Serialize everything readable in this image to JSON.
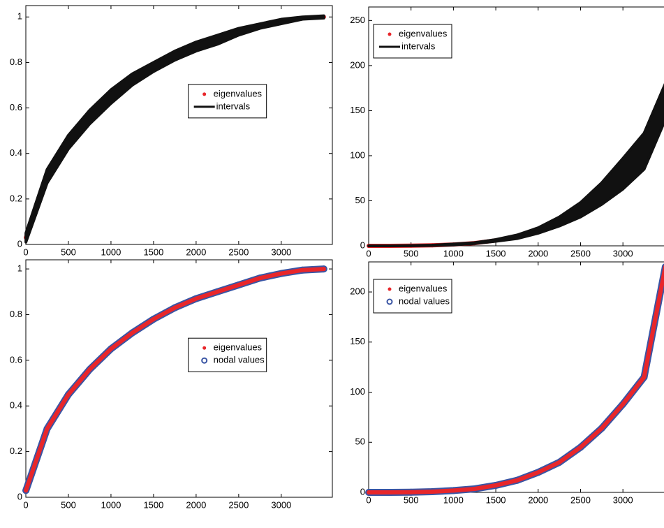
{
  "chart_data": [
    {
      "type": "line",
      "x": [
        1,
        250,
        500,
        750,
        1000,
        1250,
        1500,
        1750,
        2000,
        2250,
        2500,
        2750,
        3000,
        3250,
        3500
      ],
      "xlim": [
        0,
        3600
      ],
      "xticks": [
        0,
        500,
        1000,
        1500,
        2000,
        2500,
        3000
      ],
      "ylim": [
        0,
        1.05
      ],
      "yticks": [
        0,
        0.2,
        0.4,
        0.6,
        0.8,
        1
      ],
      "legend": "east",
      "series": [
        {
          "name": "eigenvalues",
          "color": "#e8262a",
          "style": "dots",
          "values": [
            0.03,
            0.3,
            0.45,
            0.56,
            0.65,
            0.72,
            0.78,
            0.83,
            0.87,
            0.9,
            0.93,
            0.96,
            0.98,
            0.995,
            1.0
          ]
        },
        {
          "name": "intervals",
          "color": "#111111",
          "style": "band",
          "lower": [
            0.01,
            0.27,
            0.42,
            0.53,
            0.62,
            0.7,
            0.76,
            0.81,
            0.85,
            0.88,
            0.92,
            0.95,
            0.97,
            0.99,
            0.995
          ],
          "upper": [
            0.05,
            0.33,
            0.48,
            0.59,
            0.68,
            0.75,
            0.8,
            0.85,
            0.89,
            0.92,
            0.95,
            0.97,
            0.99,
            1.0,
            1.005
          ]
        }
      ]
    },
    {
      "type": "line",
      "x": [
        1,
        250,
        500,
        750,
        1000,
        1250,
        1500,
        1750,
        2000,
        2250,
        2500,
        2750,
        3000,
        3250,
        3500
      ],
      "xlim": [
        0,
        3600
      ],
      "xticks": [
        0,
        500,
        1000,
        1500,
        2000,
        2500,
        3000
      ],
      "ylim": [
        0,
        265
      ],
      "yticks": [
        0,
        50,
        100,
        150,
        200,
        250
      ],
      "legend": "northwest",
      "series": [
        {
          "name": "eigenvalues",
          "color": "#e8262a",
          "style": "dots",
          "values": [
            0,
            0,
            0.2,
            0.6,
            1.5,
            3,
            6,
            10,
            17,
            27,
            40,
            58,
            80,
            105,
            170
          ]
        },
        {
          "name": "intervals",
          "color": "#111111",
          "style": "band",
          "lower": [
            0,
            0,
            0.1,
            0.4,
            1,
            2.5,
            5,
            8,
            14,
            22,
            32,
            46,
            63,
            85,
            140
          ],
          "upper": [
            0,
            0,
            0.3,
            0.8,
            2,
            3.5,
            7,
            12,
            20,
            32,
            48,
            70,
            97,
            125,
            180
          ]
        }
      ]
    },
    {
      "type": "line",
      "x": [
        1,
        250,
        500,
        750,
        1000,
        1250,
        1500,
        1750,
        2000,
        2250,
        2500,
        2750,
        3000,
        3250,
        3500
      ],
      "xlim": [
        0,
        3600
      ],
      "xticks": [
        0,
        500,
        1000,
        1500,
        2000,
        2500,
        3000
      ],
      "ylim": [
        0,
        1.04
      ],
      "yticks": [
        0,
        0.2,
        0.4,
        0.6,
        0.8,
        1
      ],
      "legend": "east",
      "series": [
        {
          "name": "nodal values",
          "color": "#3a55a4",
          "style": "circles",
          "values": [
            0.03,
            0.3,
            0.45,
            0.56,
            0.65,
            0.72,
            0.78,
            0.83,
            0.87,
            0.9,
            0.93,
            0.96,
            0.98,
            0.995,
            1.0
          ]
        },
        {
          "name": "eigenvalues",
          "color": "#e8262a",
          "style": "dots",
          "values": [
            0.03,
            0.3,
            0.45,
            0.56,
            0.65,
            0.72,
            0.78,
            0.83,
            0.87,
            0.9,
            0.93,
            0.96,
            0.98,
            0.995,
            1.0
          ]
        }
      ]
    },
    {
      "type": "line",
      "x": [
        1,
        250,
        500,
        750,
        1000,
        1250,
        1500,
        1750,
        2000,
        2250,
        2500,
        2750,
        3000,
        3250,
        3500
      ],
      "xlim": [
        0,
        3600
      ],
      "xticks": [
        0,
        500,
        1000,
        1500,
        2000,
        2500,
        3000
      ],
      "ylim": [
        0,
        230
      ],
      "yticks": [
        0,
        50,
        100,
        150,
        200
      ],
      "legend": "northwest",
      "series": [
        {
          "name": "nodal values",
          "color": "#3a55a4",
          "style": "circles",
          "values": [
            0,
            0,
            0.2,
            0.7,
            1.8,
            3.5,
            7,
            12,
            20,
            30,
            45,
            64,
            88,
            115,
            225
          ]
        },
        {
          "name": "eigenvalues",
          "color": "#e8262a",
          "style": "dots",
          "values": [
            0,
            0,
            0.2,
            0.7,
            1.8,
            3.5,
            7,
            12,
            20,
            30,
            45,
            64,
            88,
            115,
            225
          ]
        }
      ]
    }
  ]
}
